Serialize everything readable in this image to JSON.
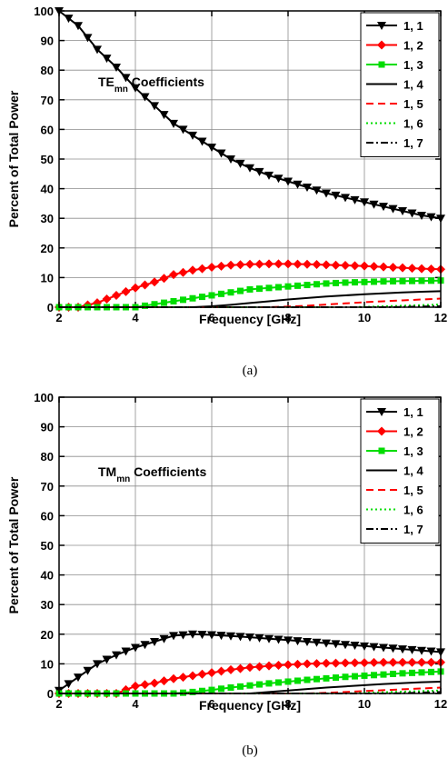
{
  "chart_data": [
    {
      "type": "line",
      "panel_label": "(a)",
      "annotation": {
        "main": "TE",
        "sub": "mn",
        "rest": " Coefficients"
      },
      "xlabel": "Frequency [GHz]",
      "ylabel": "Percent of Total Power",
      "xlim": [
        2,
        12
      ],
      "ylim": [
        0,
        100
      ],
      "xticks": [
        2,
        4,
        6,
        8,
        10,
        12
      ],
      "yticks": [
        0,
        10,
        20,
        30,
        40,
        50,
        60,
        70,
        80,
        90,
        100
      ],
      "grid": true,
      "legend_position": "top-right",
      "x": [
        2,
        2.5,
        3,
        3.5,
        4,
        4.5,
        5,
        5.5,
        6,
        6.5,
        7,
        7.5,
        8,
        8.5,
        9,
        9.5,
        10,
        10.5,
        11,
        11.5,
        12
      ],
      "series": [
        {
          "name": "1, 1",
          "color": "#000000",
          "dash": "",
          "marker": "triangle-down",
          "values": [
            100,
            95,
            87,
            81,
            74,
            68,
            62,
            58,
            54,
            50,
            47,
            44.5,
            42.5,
            40.5,
            38.5,
            37,
            35.5,
            34,
            32.5,
            31,
            30
          ]
        },
        {
          "name": "1, 2",
          "color": "#ff0000",
          "dash": "",
          "marker": "diamond",
          "values": [
            0,
            0,
            1.5,
            4,
            6.5,
            8.5,
            11,
            12.5,
            13.5,
            14.2,
            14.5,
            14.6,
            14.6,
            14.5,
            14.3,
            14.1,
            13.9,
            13.6,
            13.3,
            13,
            12.8
          ]
        },
        {
          "name": "1, 3",
          "color": "#00dd00",
          "dash": "",
          "marker": "square",
          "values": [
            0,
            0,
            0,
            0,
            0,
            1,
            2,
            3,
            4,
            5,
            6,
            6.5,
            7,
            7.5,
            8,
            8.3,
            8.5,
            8.7,
            8.8,
            8.9,
            9
          ]
        },
        {
          "name": "1, 4",
          "color": "#000000",
          "dash": "",
          "marker": "none",
          "values": [
            0,
            0,
            0,
            0,
            0,
            0,
            0,
            0,
            0.3,
            0.8,
            1.4,
            2,
            2.6,
            3.1,
            3.6,
            4,
            4.4,
            4.7,
            5,
            5.2,
            5.4
          ]
        },
        {
          "name": "1, 5",
          "color": "#ff0000",
          "dash": "8,5",
          "marker": "none",
          "values": [
            0,
            0,
            0,
            0,
            0,
            0,
            0,
            0,
            0,
            0,
            0,
            0,
            0.2,
            0.5,
            0.9,
            1.3,
            1.7,
            2,
            2.3,
            2.6,
            2.9
          ]
        },
        {
          "name": "1, 6",
          "color": "#00dd00",
          "dash": "2,3",
          "marker": "none",
          "values": [
            0,
            0,
            0,
            0,
            0,
            0,
            0,
            0,
            0,
            0,
            0,
            0,
            0,
            0,
            0,
            0,
            0.1,
            0.3,
            0.5,
            0.7,
            0.9
          ]
        },
        {
          "name": "1, 7",
          "color": "#000000",
          "dash": "8,3,2,3",
          "marker": "none",
          "values": [
            0,
            0,
            0,
            0,
            0,
            0,
            0,
            0,
            0,
            0,
            0,
            0,
            0,
            0,
            0,
            0,
            0,
            0,
            0.1,
            0.2,
            0.3
          ]
        }
      ]
    },
    {
      "type": "line",
      "panel_label": "(b)",
      "annotation": {
        "main": "TM",
        "sub": "mn",
        "rest": " Coefficients"
      },
      "xlabel": "Frequency [GHz]",
      "ylabel": "Percent of Total Power",
      "xlim": [
        2,
        12
      ],
      "ylim": [
        0,
        100
      ],
      "xticks": [
        2,
        4,
        6,
        8,
        10,
        12
      ],
      "yticks": [
        0,
        10,
        20,
        30,
        40,
        50,
        60,
        70,
        80,
        90,
        100
      ],
      "grid": true,
      "legend_position": "top-right",
      "x": [
        2,
        2.5,
        3,
        3.5,
        4,
        4.5,
        5,
        5.5,
        6,
        6.5,
        7,
        7.5,
        8,
        8.5,
        9,
        9.5,
        10,
        10.5,
        11,
        11.5,
        12
      ],
      "series": [
        {
          "name": "1, 1",
          "color": "#000000",
          "dash": "",
          "marker": "triangle-down",
          "values": [
            1,
            5.5,
            10,
            13,
            15.5,
            17.5,
            19.5,
            20,
            19.8,
            19.4,
            19,
            18.5,
            18,
            17.5,
            17,
            16.5,
            16,
            15.5,
            15,
            14.5,
            14
          ]
        },
        {
          "name": "1, 2",
          "color": "#ff0000",
          "dash": "",
          "marker": "diamond",
          "values": [
            0,
            0,
            0,
            0,
            2.5,
            3.5,
            5,
            6,
            7,
            8,
            8.8,
            9.3,
            9.7,
            10,
            10.2,
            10.3,
            10.4,
            10.5,
            10.5,
            10.5,
            10.5
          ]
        },
        {
          "name": "1, 3",
          "color": "#00dd00",
          "dash": "",
          "marker": "square",
          "values": [
            0,
            0,
            0,
            0,
            0,
            0,
            0,
            0.5,
            1.2,
            2,
            2.7,
            3.4,
            4,
            4.6,
            5.1,
            5.6,
            6,
            6.4,
            6.8,
            7.1,
            7.4
          ]
        },
        {
          "name": "1, 4",
          "color": "#000000",
          "dash": "",
          "marker": "none",
          "values": [
            0,
            0,
            0,
            0,
            0,
            0,
            0,
            0,
            0,
            0,
            0,
            0.5,
            1,
            1.5,
            2,
            2.4,
            2.8,
            3.2,
            3.5,
            3.8,
            4
          ]
        },
        {
          "name": "1, 5",
          "color": "#ff0000",
          "dash": "8,5",
          "marker": "none",
          "values": [
            0,
            0,
            0,
            0,
            0,
            0,
            0,
            0,
            0,
            0,
            0,
            0,
            0,
            0,
            0.2,
            0.5,
            0.8,
            1.1,
            1.4,
            1.7,
            2
          ]
        },
        {
          "name": "1, 6",
          "color": "#00dd00",
          "dash": "2,3",
          "marker": "none",
          "values": [
            0,
            0,
            0,
            0,
            0,
            0,
            0,
            0,
            0,
            0,
            0,
            0,
            0,
            0,
            0,
            0,
            0.2,
            0.4,
            0.6,
            0.8,
            1
          ]
        },
        {
          "name": "1, 7",
          "color": "#000000",
          "dash": "8,3,2,3",
          "marker": "none",
          "values": [
            0,
            0,
            0,
            0,
            0,
            0,
            0,
            0,
            0,
            0,
            0,
            0,
            0,
            0,
            0,
            0,
            0,
            0,
            0.1,
            0.3,
            0.5
          ]
        }
      ]
    }
  ]
}
